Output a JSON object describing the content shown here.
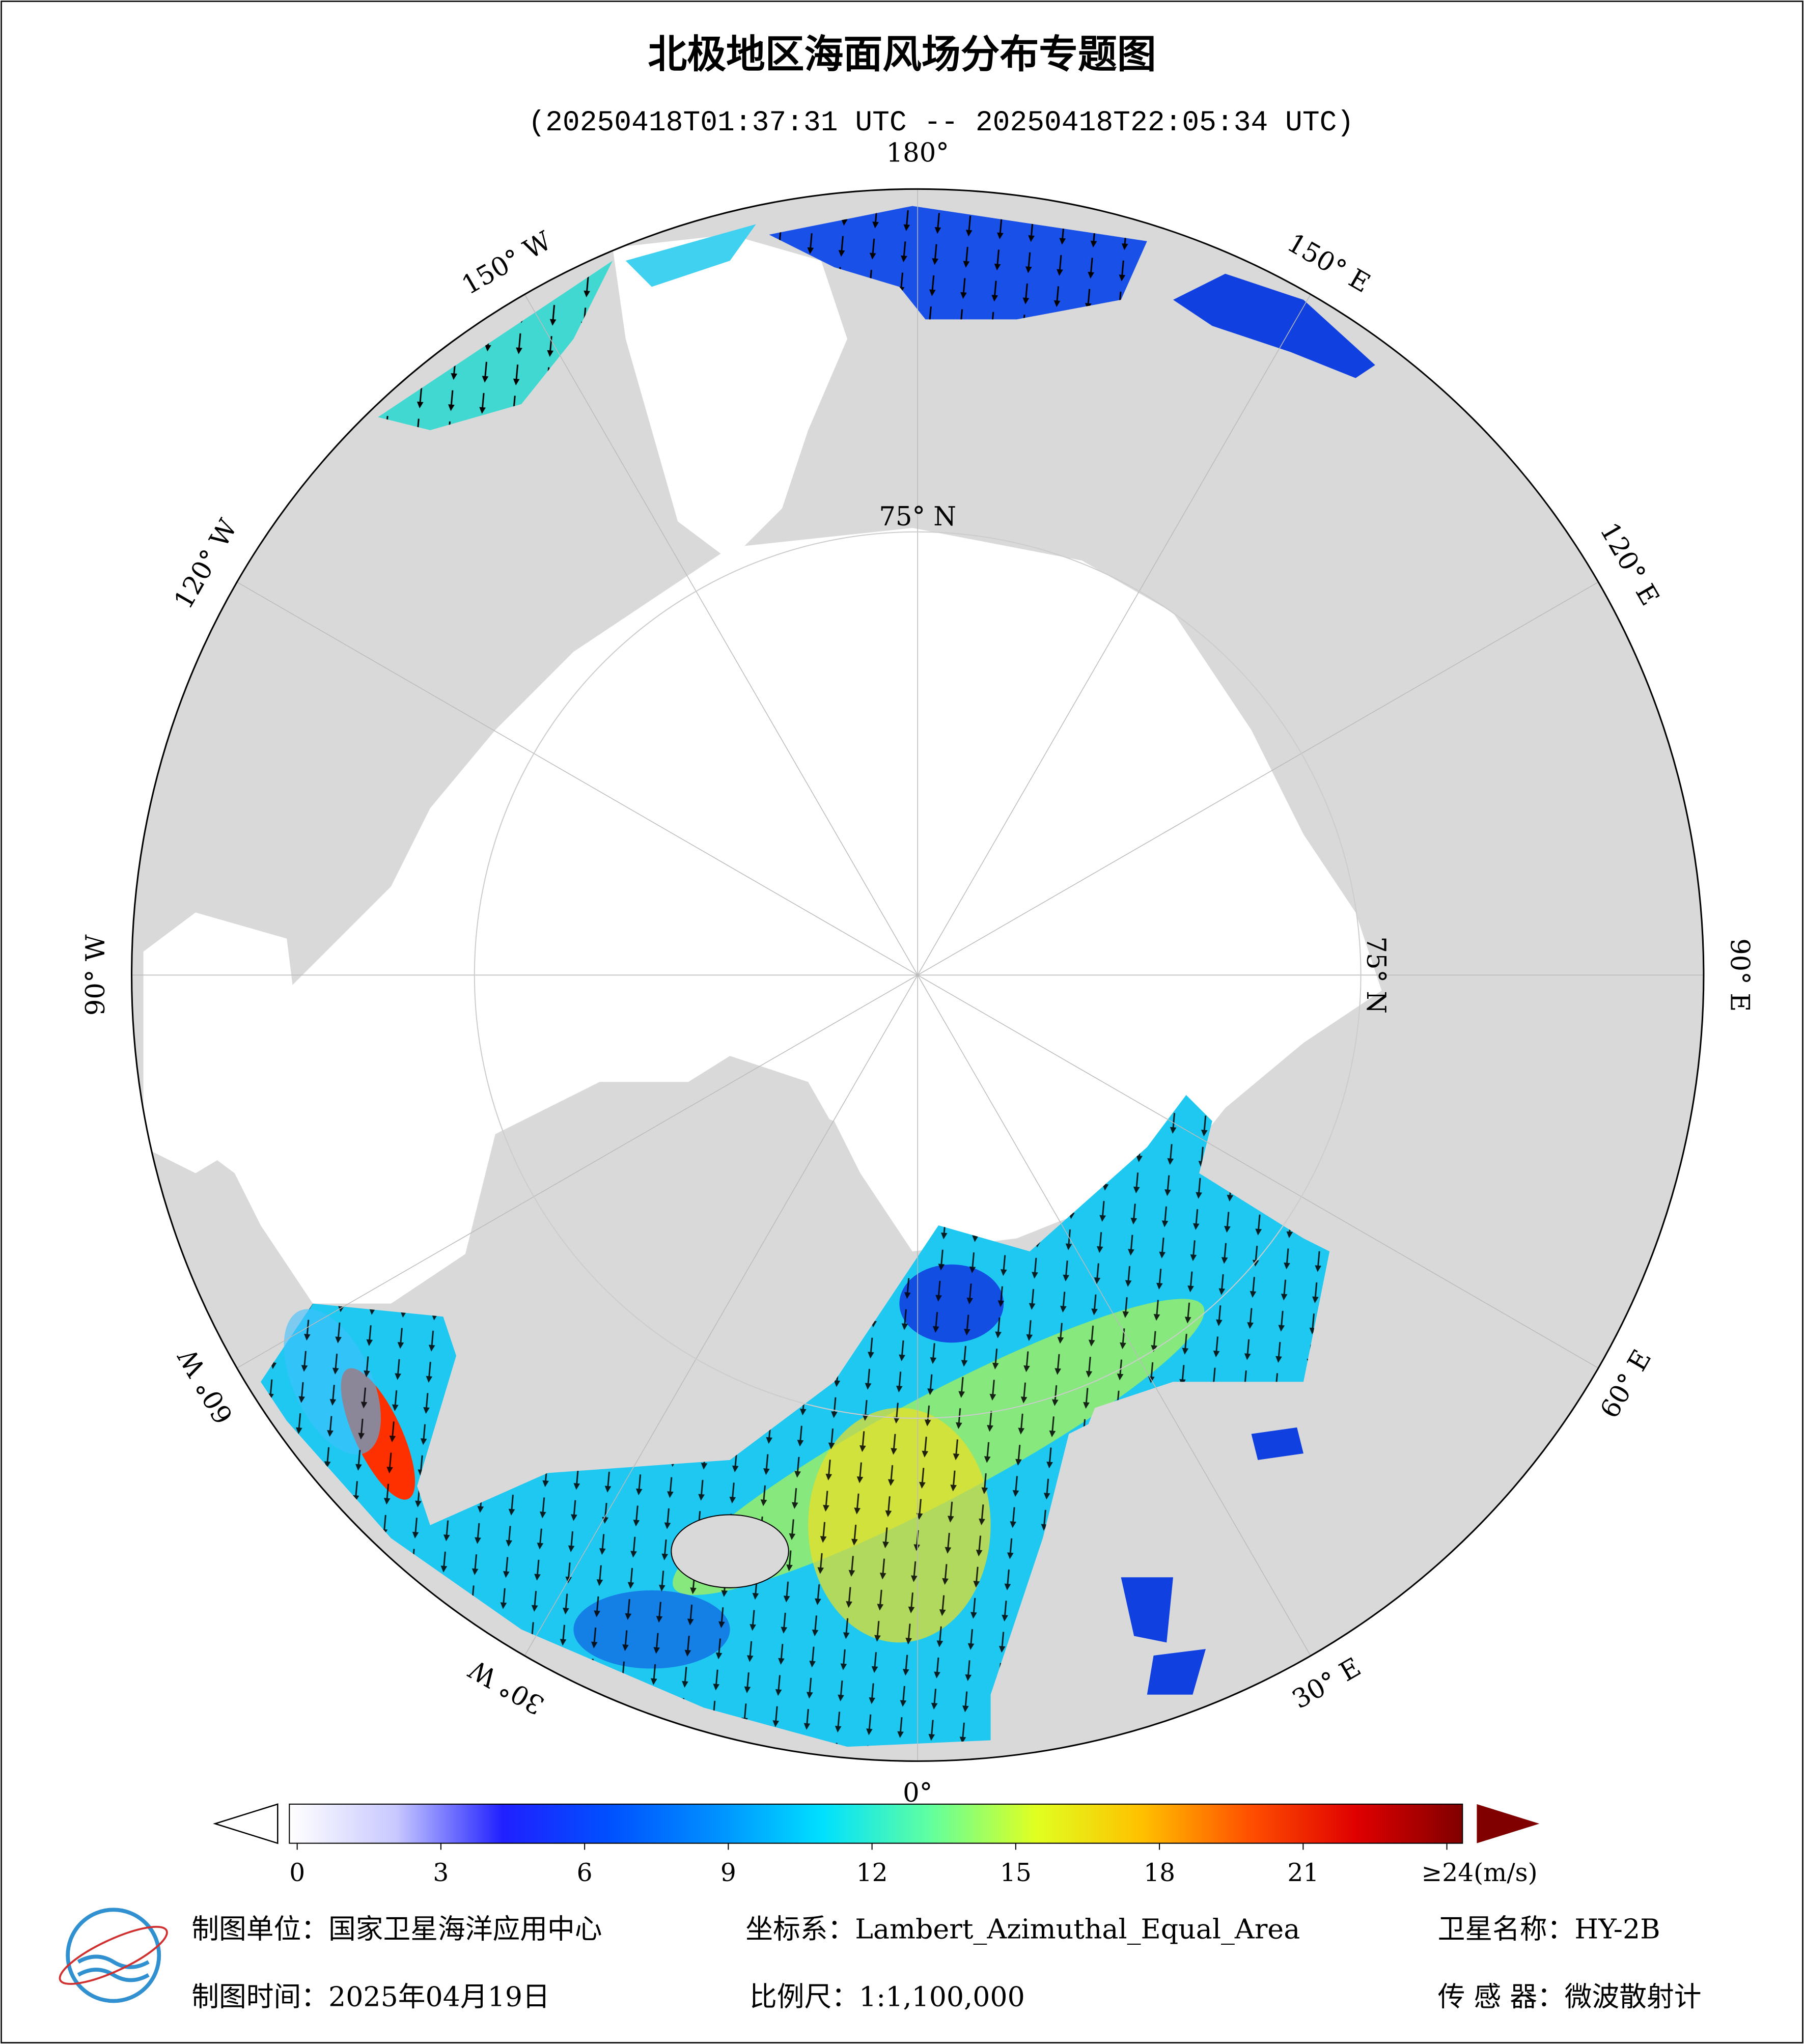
{
  "map": {
    "title": "北极地区海面风场分布专题图",
    "subtitle": "(20250418T01:37:31 UTC -- 20250418T22:05:34 UTC)",
    "lon_labels": [
      {
        "value": 180,
        "label": "180°"
      },
      {
        "value": -150,
        "label": "150° W"
      },
      {
        "value": -120,
        "label": "120° W"
      },
      {
        "value": -90,
        "label": "90° W"
      },
      {
        "value": -60,
        "label": "60° W"
      },
      {
        "value": -30,
        "label": "30° W"
      },
      {
        "value": 0,
        "label": "0°"
      },
      {
        "value": 30,
        "label": "30° E"
      },
      {
        "value": 60,
        "label": "60° E"
      },
      {
        "value": 90,
        "label": "90° E"
      },
      {
        "value": 120,
        "label": "120° E"
      },
      {
        "value": 150,
        "label": "150° E"
      }
    ],
    "lat_label": {
      "value": 75,
      "label": "75° N"
    },
    "colorbar": {
      "ticks": [
        0,
        3,
        6,
        9,
        12,
        15,
        18,
        21,
        {
          "value": 24,
          "label": "≥24(m/s)"
        }
      ],
      "colors": [
        "#ffffff",
        "#c8c8ff",
        "#2020ff",
        "#0050ff",
        "#0090ff",
        "#00e0ff",
        "#60ffa0",
        "#e0ff20",
        "#ffc000",
        "#ff5000",
        "#e00000",
        "#800000"
      ]
    },
    "footer": {
      "unit": "制图单位：国家卫星海洋应用中心",
      "crs": "坐标系：Lambert_Azimuthal_Equal_Area",
      "satellite": "卫星名称：HY-2B",
      "date": "制图时间：2025年04月19日",
      "scale": "比例尺：1:1,100,000",
      "sensor": "传 感 器：微波散射计"
    }
  }
}
